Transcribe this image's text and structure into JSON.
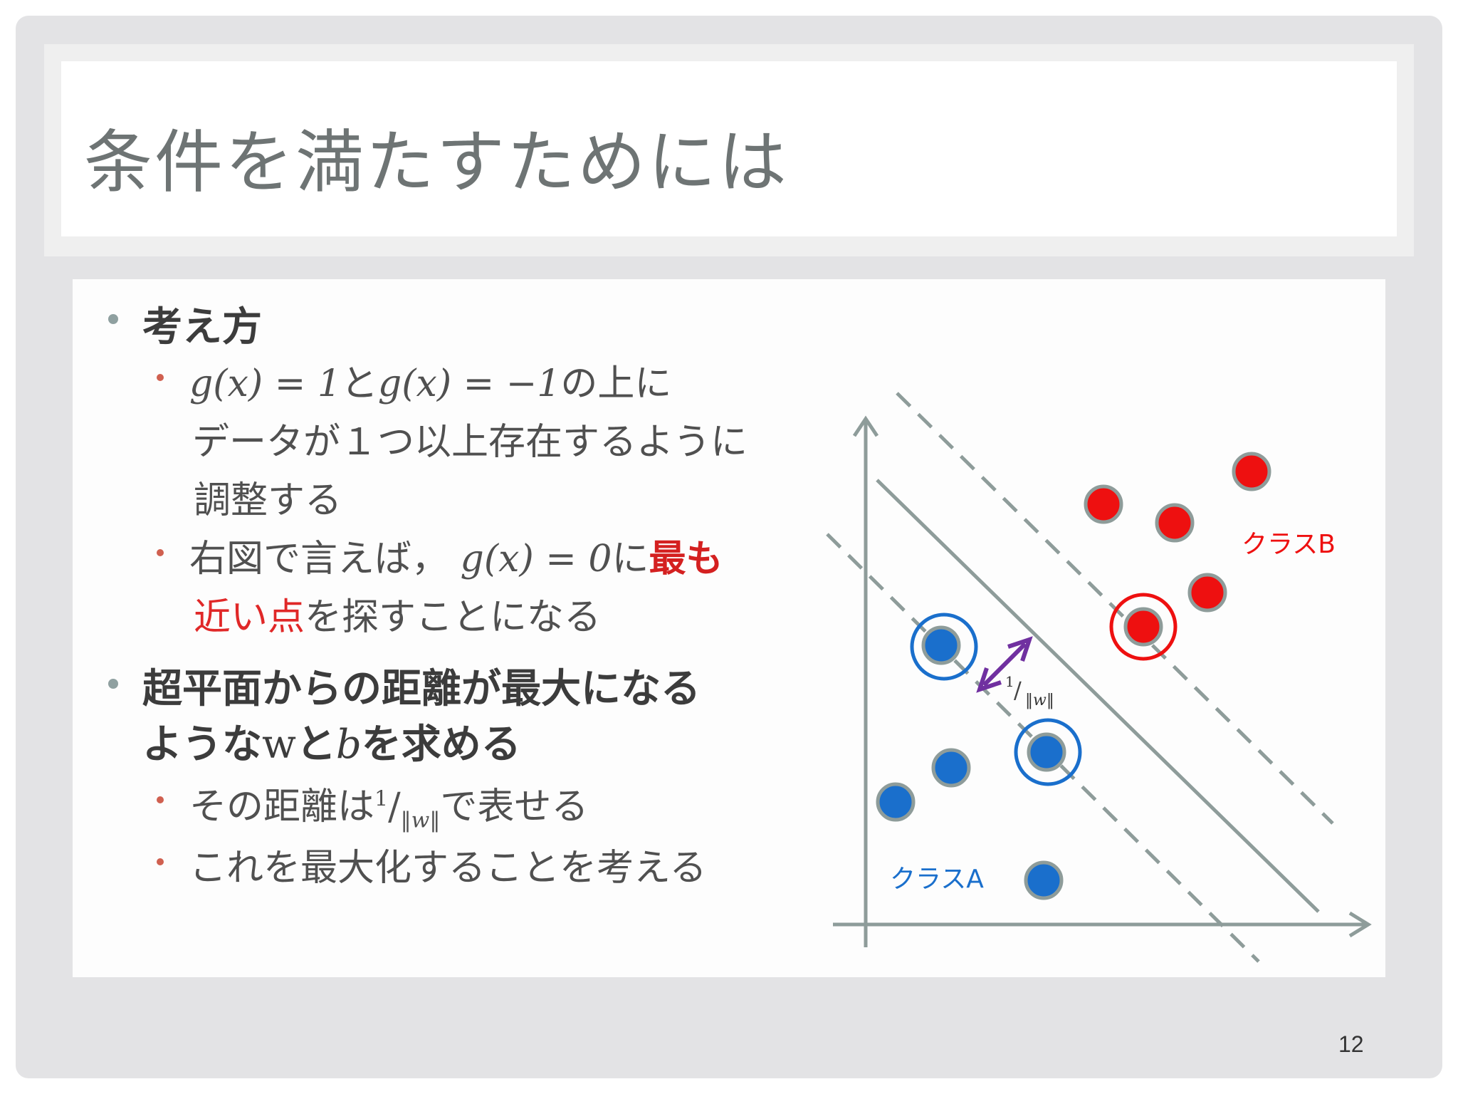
{
  "slide": {
    "title": "条件を満たすためには",
    "page_number": "12"
  },
  "bullets": {
    "b1": {
      "label": "考え方"
    },
    "b1_1": {
      "math_a": "g(x) = 1",
      "conj": "と",
      "math_b": "g(x) = −1",
      "rest_line1": "の上に",
      "line2": "データが１つ以上存在するように",
      "line3": "調整する"
    },
    "b1_2": {
      "prefix": "右図で言えば，",
      "math": "g(x) = 0",
      "mid": "に",
      "hl1": "最も",
      "hl2": "近い点",
      "suffix": "を探すことになる"
    },
    "b2": {
      "line1": "超平面からの距離が最大になる",
      "line2_a": "ような",
      "line2_w": "w",
      "line2_b": "と",
      "line2_bvar": "b",
      "line2_c": "を求める"
    },
    "b2_1": {
      "prefix": "その距離は",
      "num": "1",
      "den": "‖w‖",
      "suffix": "で表せる"
    },
    "b2_2": {
      "text": "これを最大化することを考える"
    }
  },
  "figure": {
    "class_a_label": "クラスA",
    "class_b_label": "クラスB",
    "margin_num": "1",
    "margin_den": "‖w‖",
    "colors": {
      "class_a": "#1a6fcc",
      "class_b": "#ee1010",
      "axis": "#8e9c9a",
      "arrow": "#7030a0"
    }
  }
}
